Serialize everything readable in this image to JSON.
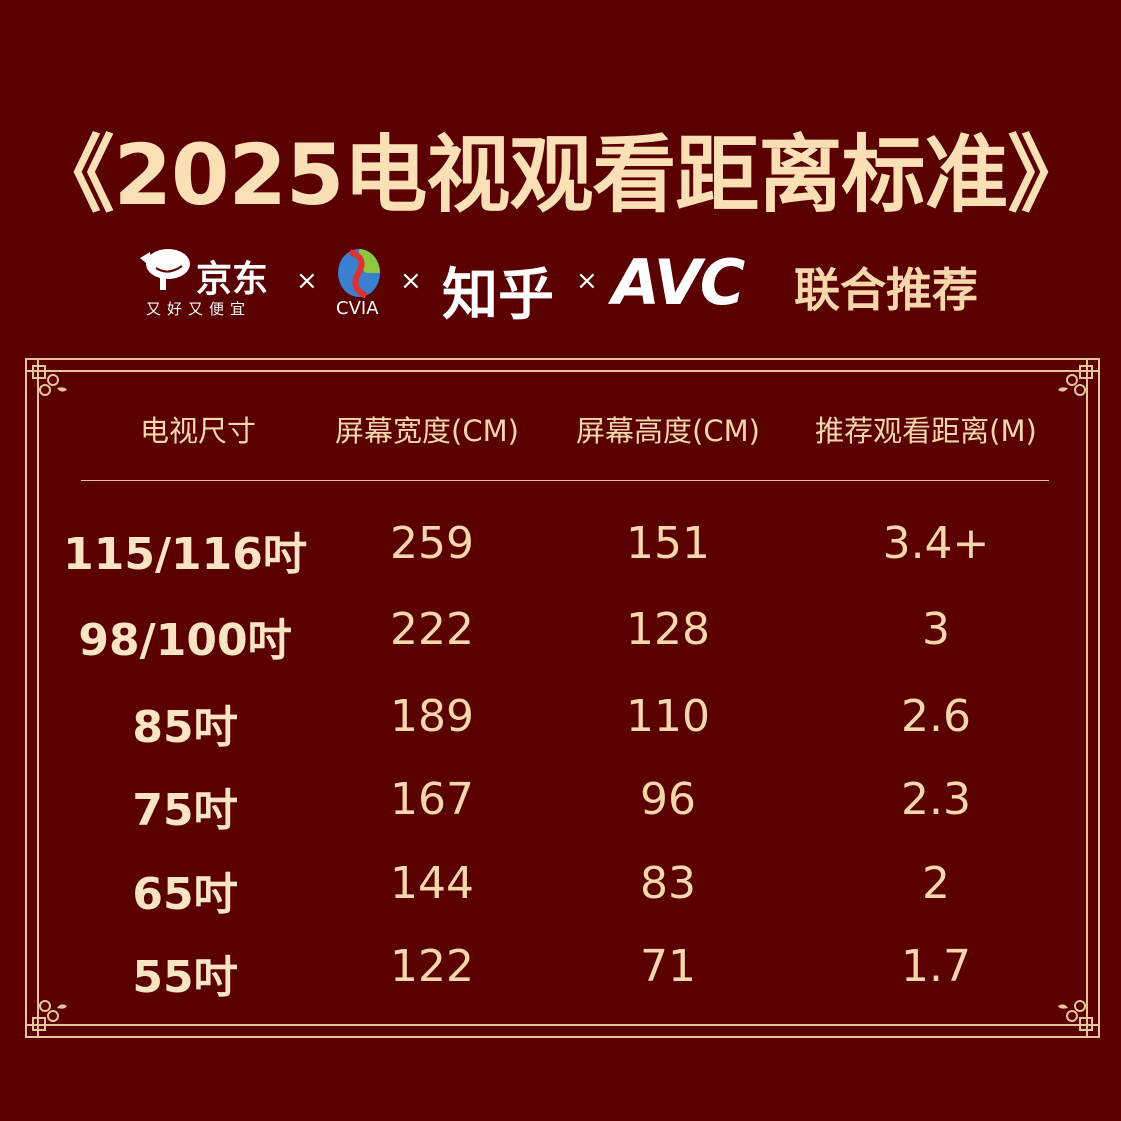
{
  "title": "《2025电视观看距离标准》",
  "partners": {
    "jd_name": "京东",
    "jd_slogan": "又好又便宜",
    "cvia": "CVIA",
    "zhihu": "知乎",
    "avc": "AVC",
    "separator": "×",
    "joint_label": "联合推荐"
  },
  "colors": {
    "background": "#5a0000",
    "gold": "#f6d6ab"
  },
  "table": {
    "headers": [
      "电视尺寸",
      "屏幕宽度(CM)",
      "屏幕高度(CM)",
      "推荐观看距离(M)"
    ],
    "rows": [
      [
        "115/116吋",
        "259",
        "151",
        "3.4+"
      ],
      [
        "98/100吋",
        "222",
        "128",
        "3"
      ],
      [
        "85吋",
        "189",
        "110",
        "2.6"
      ],
      [
        "75吋",
        "167",
        "96",
        "2.3"
      ],
      [
        "65吋",
        "144",
        "83",
        "2"
      ],
      [
        "55吋",
        "122",
        "71",
        "1.7"
      ]
    ]
  }
}
